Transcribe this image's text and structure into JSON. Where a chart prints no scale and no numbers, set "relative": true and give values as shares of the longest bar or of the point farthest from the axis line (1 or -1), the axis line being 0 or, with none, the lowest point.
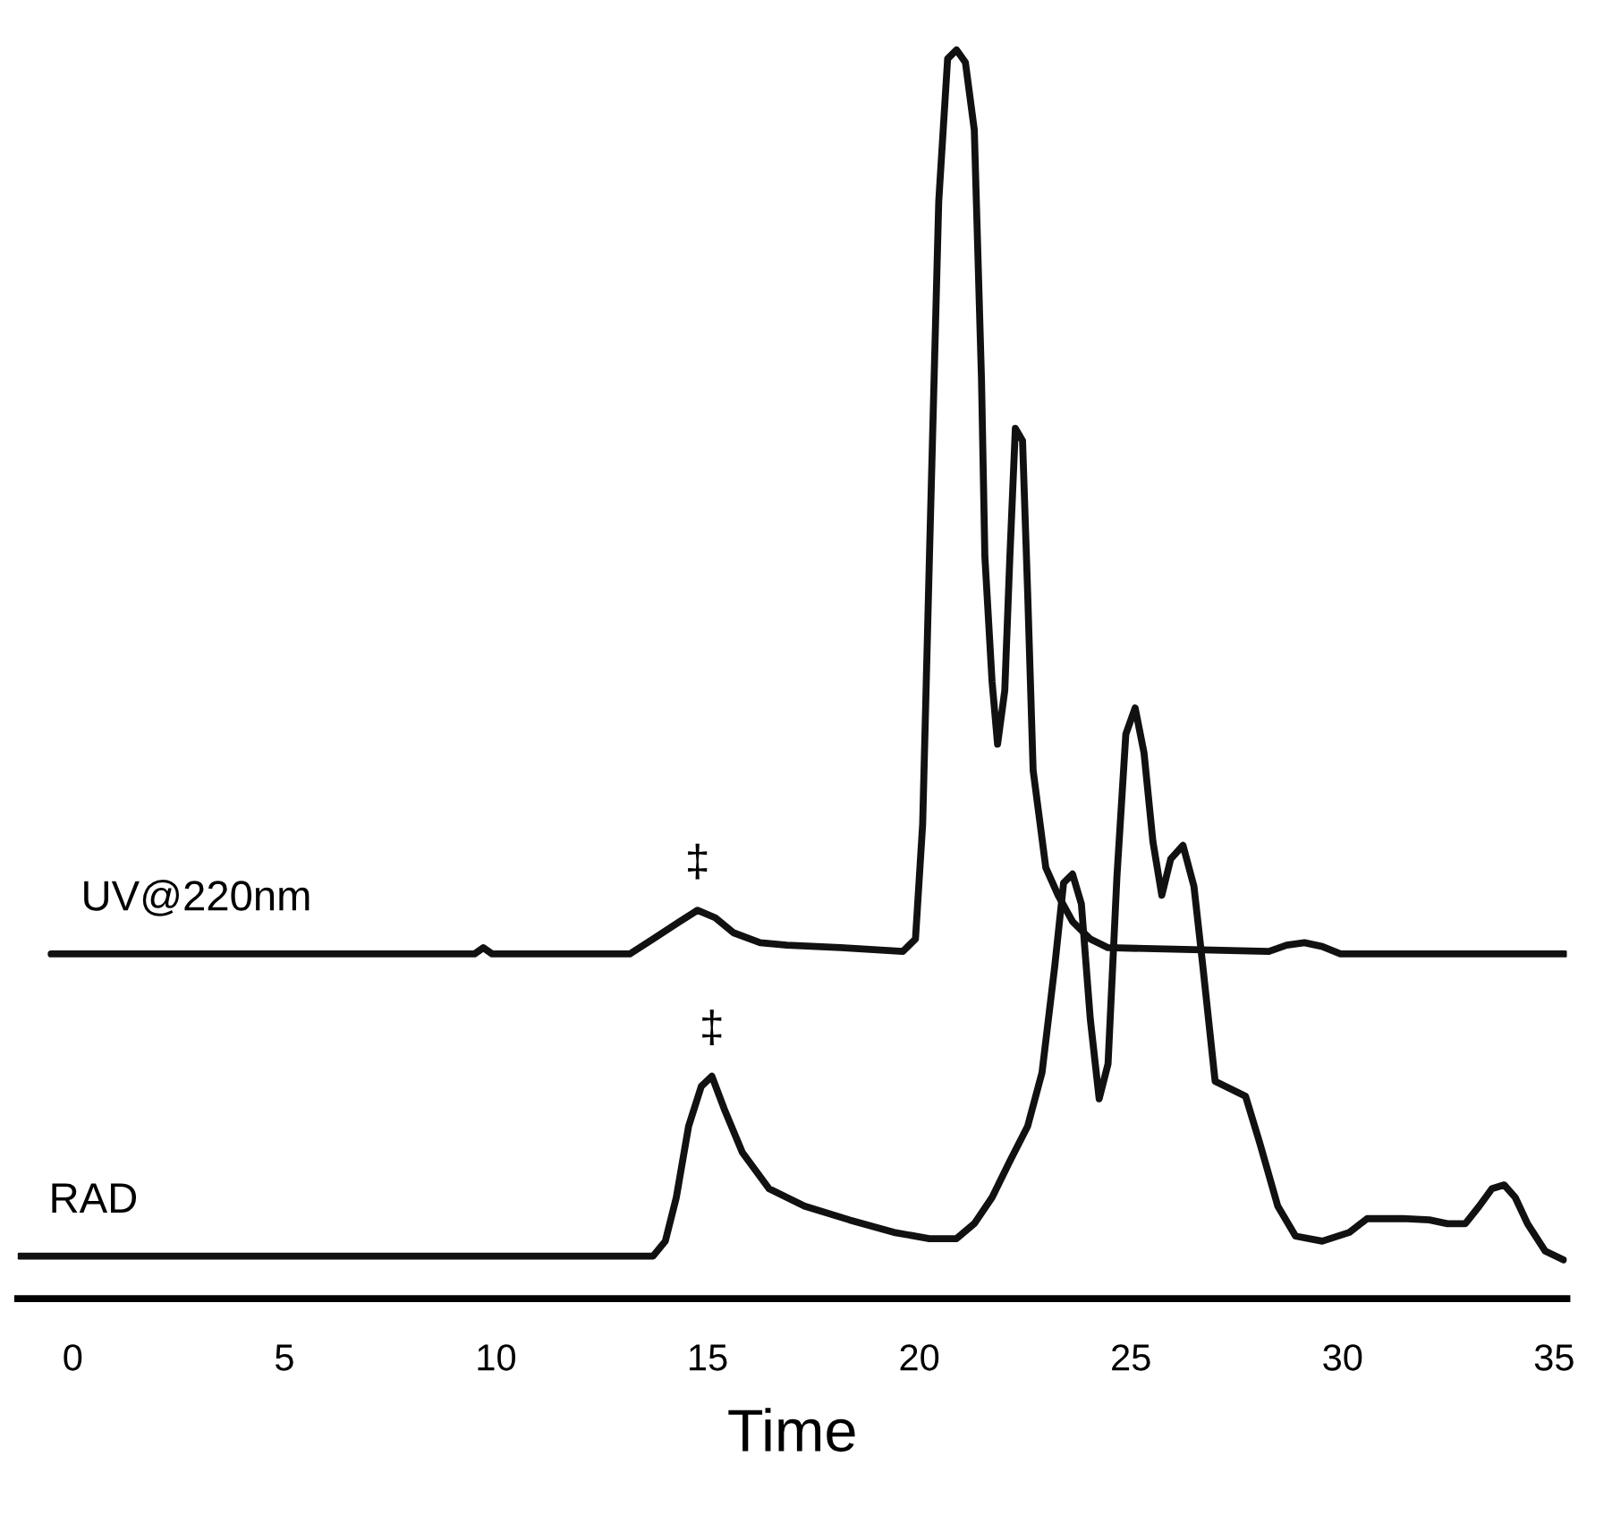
{
  "chart_data": {
    "type": "line",
    "relative": true,
    "xlabel": "Time",
    "xlim": [
      -1.3,
      35.3
    ],
    "xticks": [
      0,
      5,
      10,
      15,
      20,
      25,
      30,
      35
    ],
    "grid": false,
    "legend": false,
    "tick_labels": "x",
    "marker": "none",
    "line_style": "solid",
    "series": [
      {
        "name": "UV@220nm",
        "color": "#111111",
        "x": [
          -0.51,
          9.49,
          9.7,
          9.91,
          13.16,
          13.71,
          14.34,
          14.76,
          15.18,
          15.61,
          16.24,
          16.87,
          18.14,
          19.61,
          19.91,
          20.08,
          20.24,
          20.46,
          20.67,
          20.88,
          21.09,
          21.3,
          21.47,
          21.55,
          21.72,
          21.85,
          22.02,
          22.14,
          22.27,
          22.44,
          22.56,
          22.69,
          22.99,
          23.28,
          23.62,
          24.04,
          24.46,
          28.26,
          28.68,
          29.1,
          29.52,
          29.95,
          35.26
        ],
        "values": [
          0.276,
          0.276,
          0.281,
          0.276,
          0.276,
          0.288,
          0.302,
          0.311,
          0.305,
          0.293,
          0.285,
          0.283,
          0.281,
          0.278,
          0.288,
          0.38,
          0.594,
          0.879,
          0.993,
          1.0,
          0.99,
          0.936,
          0.736,
          0.594,
          0.494,
          0.444,
          0.487,
          0.594,
          0.697,
          0.687,
          0.566,
          0.423,
          0.345,
          0.323,
          0.302,
          0.288,
          0.281,
          0.278,
          0.283,
          0.285,
          0.282,
          0.276,
          0.276
        ]
      },
      {
        "name": "RAD",
        "color": "#111111",
        "x": [
          -1.27,
          13.71,
          14.0,
          14.26,
          14.55,
          14.85,
          15.1,
          15.39,
          15.82,
          16.45,
          17.29,
          18.35,
          19.4,
          20.24,
          20.88,
          21.3,
          21.72,
          22.14,
          22.56,
          22.9,
          23.2,
          23.41,
          23.62,
          23.83,
          24.04,
          24.25,
          24.46,
          24.67,
          24.88,
          25.1,
          25.31,
          25.52,
          25.73,
          25.94,
          26.23,
          26.49,
          26.7,
          26.99,
          27.41,
          27.71,
          28.05,
          28.47,
          28.89,
          29.52,
          30.16,
          30.58,
          31.42,
          32.05,
          32.48,
          32.9,
          33.23,
          33.53,
          33.82,
          34.08,
          34.37,
          34.79,
          35.22
        ],
        "values": [
          0.034,
          0.034,
          0.046,
          0.081,
          0.138,
          0.17,
          0.178,
          0.152,
          0.117,
          0.088,
          0.074,
          0.063,
          0.053,
          0.048,
          0.048,
          0.06,
          0.081,
          0.11,
          0.138,
          0.181,
          0.266,
          0.333,
          0.34,
          0.316,
          0.224,
          0.16,
          0.188,
          0.338,
          0.452,
          0.473,
          0.437,
          0.366,
          0.323,
          0.352,
          0.363,
          0.33,
          0.266,
          0.174,
          0.167,
          0.162,
          0.124,
          0.074,
          0.05,
          0.046,
          0.053,
          0.064,
          0.064,
          0.063,
          0.06,
          0.06,
          0.074,
          0.088,
          0.091,
          0.081,
          0.06,
          0.038,
          0.031
        ]
      }
    ],
    "annotations": [
      {
        "text": "‡",
        "x": 14.76,
        "y": 0.311
      },
      {
        "text": "‡",
        "x": 15.1,
        "y": 0.178
      }
    ]
  }
}
